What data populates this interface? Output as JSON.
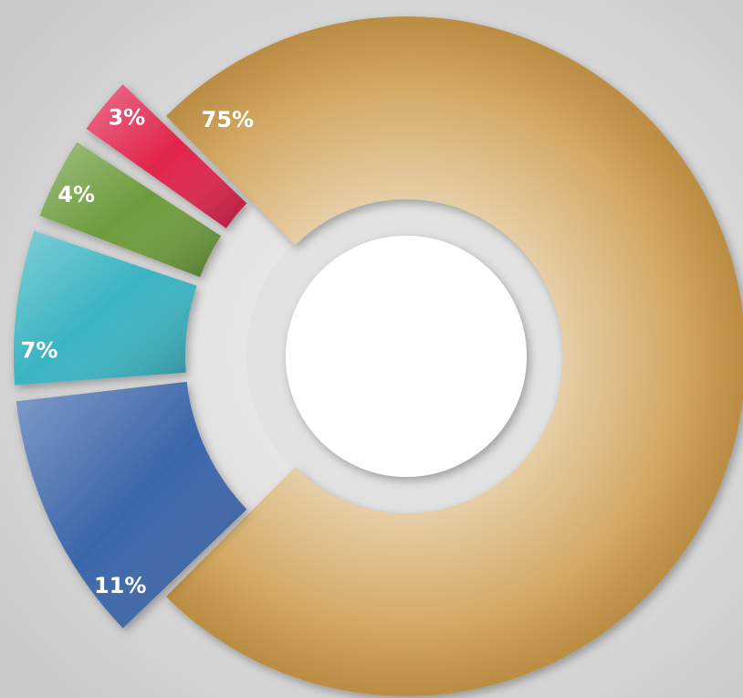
{
  "chart_data": {
    "type": "donut",
    "values": [
      75,
      11,
      7,
      4,
      3
    ],
    "value_labels": [
      "75%",
      "11%",
      "7%",
      "4%",
      "3%"
    ],
    "colors": [
      "#c8923a",
      "#3b66aa",
      "#3ab4c2",
      "#6d9c3c",
      "#e1244c"
    ]
  }
}
